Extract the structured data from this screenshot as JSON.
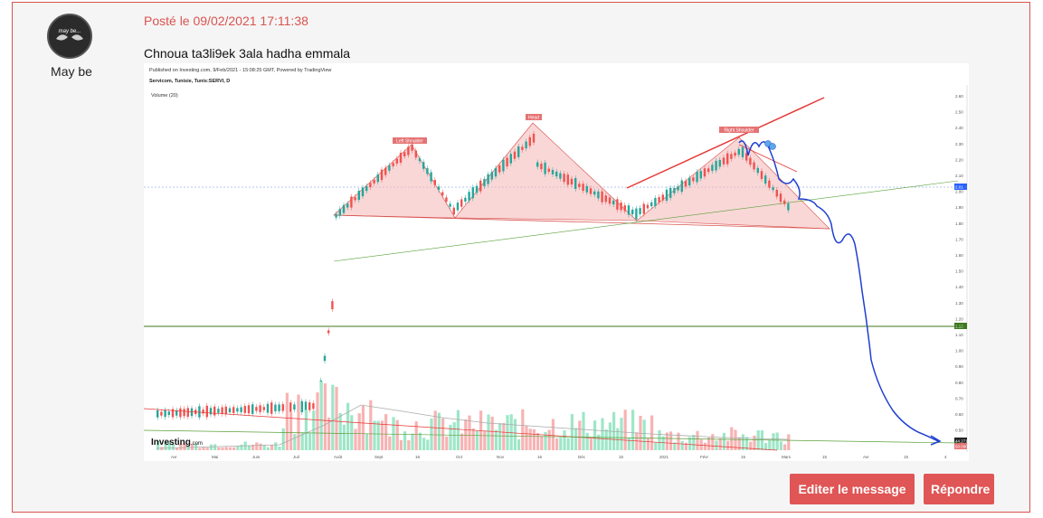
{
  "post": {
    "author": "May be",
    "avatar_text": "may be...",
    "posted_label": "Posté le 09/02/2021 17:11:38",
    "message": "Chnoua ta3li9ek 3ala hadha emmala"
  },
  "chart": {
    "publisher_line": "Published on Investing.com, 9/Feb/2021 - 15:08:25 GMT, Powered by TradingView",
    "instrument": "Servicom, Tunisie, Tunis:SERVI, D",
    "volume_label": "Volume (20)",
    "brand": "Investing",
    "brand_suffix": ".com",
    "annotations": [
      "Left Shoulder",
      "Head",
      "Right Shoulder"
    ],
    "y_ticks": [
      "2.60",
      "2.50",
      "2.40",
      "2.30",
      "2.20",
      "2.10",
      "2.00",
      "1.90",
      "1.80",
      "1.70",
      "1.60",
      "1.50",
      "1.40",
      "1.30",
      "1.20",
      "1.10",
      "1.00",
      "0.90",
      "0.80",
      "0.70",
      "0.60",
      "0.50",
      "0.40"
    ],
    "x_ticks": [
      "Avr",
      "Mai",
      "Juin",
      "Juil",
      "Août",
      "Sept",
      "16",
      "Oct",
      "Nov",
      "16",
      "Déc",
      "15",
      "2021",
      "Févr",
      "15",
      "Mars",
      "15",
      "Avr",
      "15",
      "4"
    ],
    "price_label_1": "2.01",
    "price_label_2": "1.13",
    "volume_label_value": "44.271K",
    "volume_label_value_2": "50.000K"
  },
  "buttons": {
    "edit": "Editer le message",
    "reply": "Répondre"
  },
  "colors": {
    "accent": "#d9534f",
    "button": "#e05555"
  }
}
